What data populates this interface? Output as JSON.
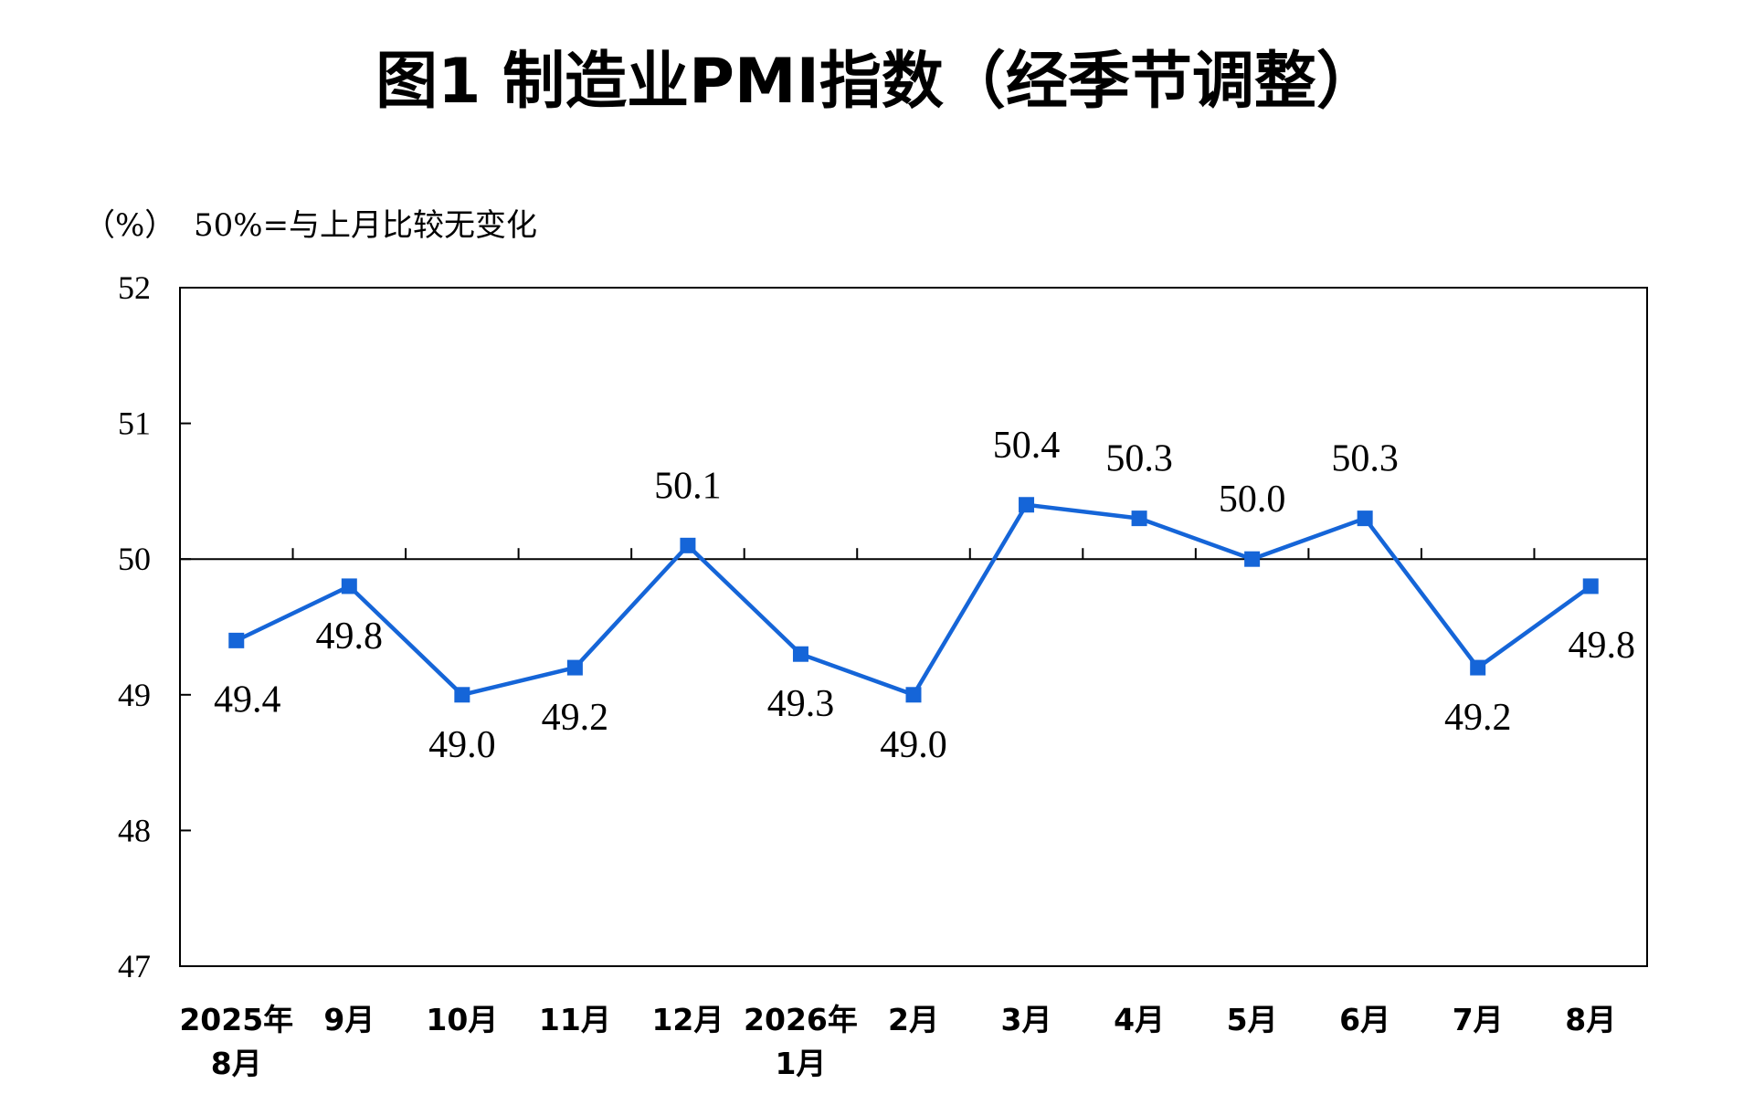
{
  "chart_data": {
    "type": "line",
    "title": "图1 制造业PMI指数（经季节调整）",
    "unit_note": "（%）",
    "reference_note": "50%=与上月比较无变化",
    "categories": [
      [
        "2025年",
        "8月"
      ],
      [
        "9月"
      ],
      [
        "10月"
      ],
      [
        "11月"
      ],
      [
        "12月"
      ],
      [
        "2026年",
        "1月"
      ],
      [
        "2月"
      ],
      [
        "3月"
      ],
      [
        "4月"
      ],
      [
        "5月"
      ],
      [
        "6月"
      ],
      [
        "7月"
      ],
      [
        "8月"
      ]
    ],
    "values": [
      49.4,
      49.8,
      49.0,
      49.2,
      50.1,
      49.3,
      49.0,
      50.4,
      50.3,
      50.0,
      50.3,
      49.2,
      49.8
    ],
    "value_labels": [
      "49.4",
      "49.8",
      "49.0",
      "49.2",
      "50.1",
      "49.3",
      "49.0",
      "50.4",
      "50.3",
      "50.0",
      "50.3",
      "49.2",
      "49.8"
    ],
    "label_positions": [
      "below",
      "below",
      "below",
      "below",
      "above",
      "below",
      "below",
      "above",
      "above",
      "above",
      "above",
      "below",
      "below"
    ],
    "ylim": [
      47,
      52
    ],
    "yticks": [
      47,
      48,
      49,
      50,
      51,
      52
    ],
    "reference_line": 50,
    "grid": false,
    "legend": "none",
    "colors": {
      "line": "#1565D8",
      "marker": "#1565D8",
      "axis": "#000000",
      "reference_line": "#000000"
    }
  }
}
